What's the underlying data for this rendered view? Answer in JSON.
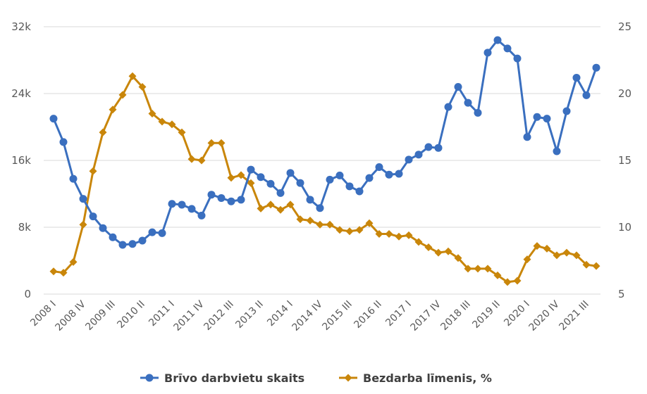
{
  "chart_data": {
    "type": "line",
    "x": [
      "2008 I",
      "2008 II",
      "2008 III",
      "2008 IV",
      "2009 I",
      "2009 II",
      "2009 III",
      "2009 IV",
      "2010 I",
      "2010 II",
      "2010 III",
      "2010 IV",
      "2011 I",
      "2011 II",
      "2011 III",
      "2011 IV",
      "2012 I",
      "2012 II",
      "2012 III",
      "2012 IV",
      "2013 I",
      "2013 II",
      "2013 III",
      "2013 IV",
      "2014 I",
      "2014 II",
      "2014 III",
      "2014 IV",
      "2015 I",
      "2015 II",
      "2015 III",
      "2015 IV",
      "2016 I",
      "2016 II",
      "2016 III",
      "2016 IV",
      "2017 I",
      "2017 II",
      "2017 III",
      "2017 IV",
      "2018 I",
      "2018 II",
      "2018 III",
      "2018 IV",
      "2019 I",
      "2019 II",
      "2019 III",
      "2019 IV",
      "2020 I",
      "2020 II",
      "2020 III",
      "2020 IV",
      "2021 I",
      "2021 II",
      "2021 III",
      "2021 IV"
    ],
    "x_tick_labels": [
      "2008 I",
      "2008 IV",
      "2009 III",
      "2010 II",
      "2011 I",
      "2011 IV",
      "2012 III",
      "2013 II",
      "2014 I",
      "2014 IV",
      "2015 III",
      "2016 II",
      "2017 I",
      "2017 IV",
      "2018 III",
      "2019 II",
      "2020 I",
      "2020 IV",
      "2021 III"
    ],
    "y_left": {
      "ylim": [
        0,
        32000
      ],
      "ticks": [
        0,
        8000,
        16000,
        24000,
        32000
      ],
      "tick_labels": [
        "0",
        "8k",
        "16k",
        "24k",
        "32k"
      ]
    },
    "y_right": {
      "ylim": [
        5,
        25
      ],
      "ticks": [
        5,
        10,
        15,
        20,
        25
      ],
      "tick_labels": [
        "5",
        "10",
        "15",
        "20",
        "25"
      ]
    },
    "grid": true,
    "legend_position": "bottom",
    "series": [
      {
        "name": "Brīvo darbvietu skaits",
        "axis": "left",
        "color": "#3a6fbf",
        "marker": "circle",
        "values": [
          21000,
          18200,
          13800,
          11400,
          9300,
          7900,
          6800,
          5900,
          6000,
          6400,
          7400,
          7300,
          10800,
          10700,
          10200,
          9400,
          11900,
          11500,
          11100,
          11300,
          14900,
          14000,
          13200,
          12100,
          14500,
          13300,
          11300,
          10300,
          13700,
          14200,
          12900,
          12300,
          13900,
          15200,
          14300,
          14400,
          16100,
          16700,
          17600,
          17500,
          22400,
          24800,
          22900,
          21700,
          28900,
          30400,
          29400,
          28200,
          18800,
          21200,
          21000,
          17100,
          21900,
          25900,
          23800,
          27100
        ]
      },
      {
        "name": "Bezdarba līmenis, %",
        "axis": "right",
        "color": "#c9860a",
        "marker": "diamond",
        "values": [
          6.7,
          6.6,
          7.4,
          10.2,
          14.2,
          17.1,
          18.8,
          19.9,
          21.3,
          20.5,
          18.5,
          17.9,
          17.7,
          17.1,
          15.1,
          15.0,
          16.3,
          16.3,
          13.7,
          13.9,
          13.3,
          11.4,
          11.7,
          11.3,
          11.7,
          10.6,
          10.5,
          10.2,
          10.2,
          9.8,
          9.7,
          9.8,
          10.3,
          9.5,
          9.5,
          9.3,
          9.4,
          8.9,
          8.5,
          8.1,
          8.2,
          7.7,
          6.9,
          6.9,
          6.9,
          6.4,
          5.9,
          6.0,
          7.6,
          8.6,
          8.4,
          7.9,
          8.1,
          7.9,
          7.2,
          7.1
        ]
      }
    ]
  }
}
